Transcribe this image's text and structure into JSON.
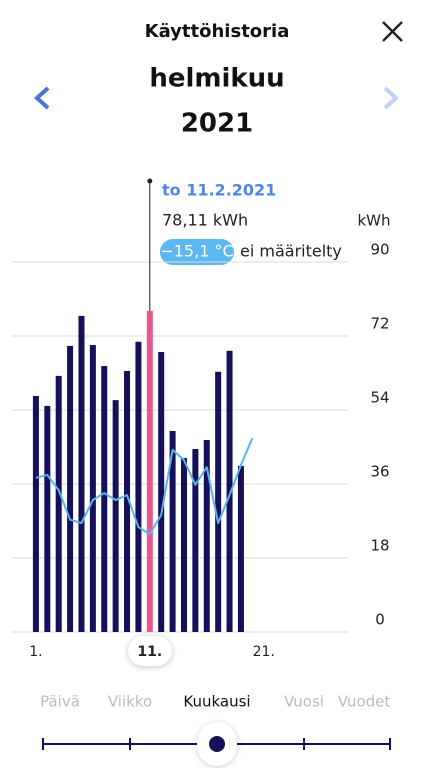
{
  "header": {
    "title": "Käyttöhistoria",
    "month": "helmikuu",
    "year": "2021"
  },
  "chart_data": {
    "type": "bar_line",
    "tooltip": {
      "date": "to 11.2.2021",
      "value": "78,11 kWh",
      "temperature": "−15,1 °C",
      "note": "ei määritelty"
    },
    "y_label": "kWh",
    "x": [
      1,
      2,
      3,
      4,
      5,
      6,
      7,
      8,
      9,
      10,
      11,
      12,
      13,
      14,
      15,
      16,
      17,
      18,
      19,
      20
    ],
    "series": [
      {
        "kind": "bar",
        "color": "#14105a",
        "values": [
          57.4,
          55,
          62.3,
          69.6,
          76.9,
          69.8,
          64.7,
          56.4,
          63.5,
          70.6,
          78.11,
          68.1,
          48.9,
          42.3,
          44.5,
          46.7,
          63.3,
          68.4,
          40.4,
          null
        ]
      },
      {
        "kind": "line",
        "color": "#5ab4ea",
        "values": [
          37.5,
          38.2,
          34.5,
          27.3,
          26.5,
          32.1,
          33.8,
          32.1,
          33.3,
          25.5,
          23.8,
          28.5,
          44.3,
          41.8,
          35.8,
          40.1,
          26.5,
          33.3,
          40.6,
          47.2
        ]
      }
    ],
    "bar_colors": [
      "#14105a",
      "#14105a",
      "#14105a",
      "#14105a",
      "#14105a",
      "#14105a",
      "#14105a",
      "#14105a",
      "#14105a",
      "#14105a",
      "#e8588f",
      "#14105a",
      "#14105a",
      "#14105a",
      "#14105a",
      "#14105a",
      "#14105a",
      "#14105a",
      "#14105a",
      "#14105a"
    ],
    "xlim": [
      -1.1,
      28.4
    ],
    "xticks": [
      {
        "value": 1,
        "label": "1."
      },
      {
        "value": 11,
        "label": "11."
      },
      {
        "value": 21,
        "label": "21."
      }
    ],
    "ylim": [
      0,
      90
    ],
    "yticks": [
      0,
      18,
      36,
      54,
      72,
      90
    ],
    "grid": true
  },
  "tabs": [
    "Päivä",
    "Viikko",
    "Kuukausi",
    "Vuosi",
    "Vuodet"
  ]
}
